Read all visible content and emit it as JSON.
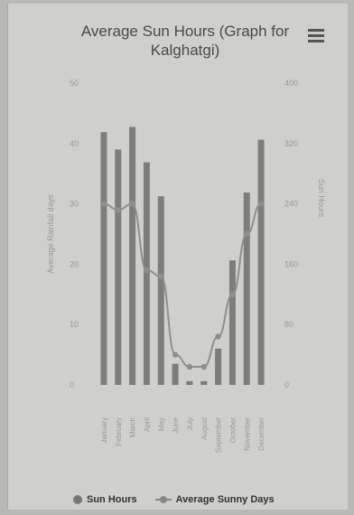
{
  "chart_data": {
    "type": "bar",
    "title": "Average Sun Hours (Graph for Kalghatgi)",
    "categories": [
      "January",
      "February",
      "March",
      "April",
      "May",
      "June",
      "July",
      "August",
      "September",
      "October",
      "November",
      "December"
    ],
    "series": [
      {
        "name": "Sun Hours",
        "kind": "bar",
        "axis": "right",
        "values": [
          335,
          312,
          342,
          295,
          250,
          28,
          5,
          5,
          48,
          165,
          255,
          325
        ]
      },
      {
        "name": "Average Sunny Days",
        "kind": "line",
        "axis": "left",
        "values": [
          30,
          29,
          30,
          19,
          18,
          5,
          3,
          3,
          8,
          15,
          25,
          30
        ]
      }
    ],
    "ylabel_left": "Average Rainfall days",
    "ylabel_right": "Sun Hours",
    "ylim_left": [
      0,
      50
    ],
    "ylim_right": [
      0,
      400
    ],
    "yticks_left": [
      "0",
      "10",
      "20",
      "30",
      "40",
      "50"
    ],
    "yticks_right": [
      "0",
      "80",
      "160",
      "240",
      "320",
      "400"
    ],
    "legend_position": "bottom"
  },
  "colors": {
    "bar": "#7d7d7d",
    "line": "#8f8f8f",
    "frame": "#cfcfcb"
  },
  "menu_icon": "hamburger-icon"
}
